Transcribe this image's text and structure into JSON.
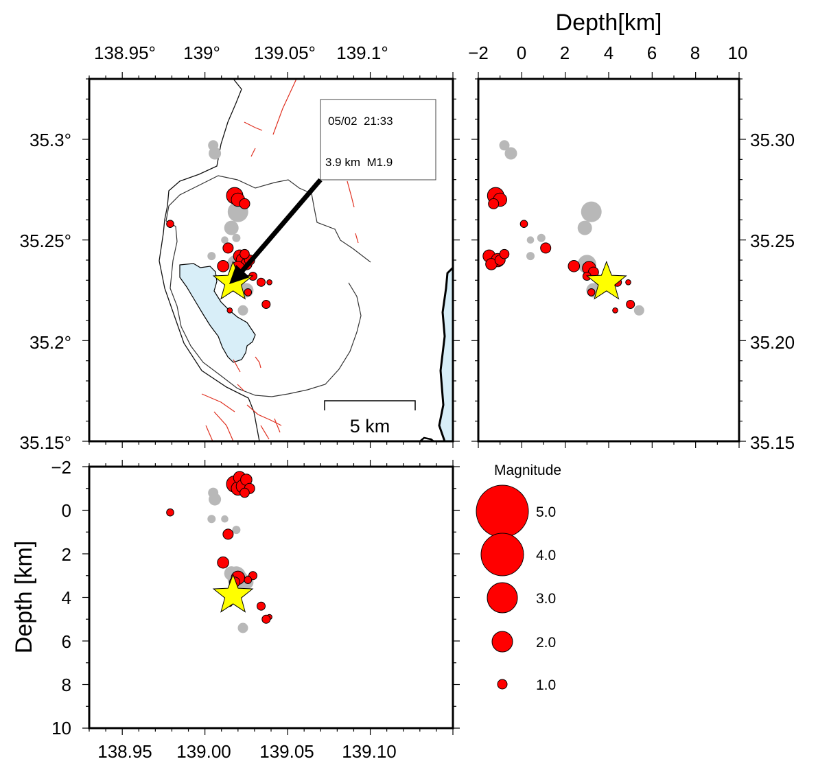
{
  "map": {
    "lon_ticks": [
      "138.95°",
      "139°",
      "139.05°",
      "139.1°"
    ],
    "lat_ticks": [
      "35.3°",
      "35.25°",
      "35.2°",
      "35.15°"
    ],
    "scale_label": "5 km",
    "callout": {
      "datetime": "05/02  21:33",
      "depth_mag": "3.9 km  M1.9"
    }
  },
  "depth_lat": {
    "title": "Depth[km]",
    "depth_ticks": [
      "−2",
      "0",
      "2",
      "4",
      "6",
      "8",
      "10"
    ],
    "lat_ticks": [
      "35.30",
      "35.25",
      "35.20",
      "35.15"
    ]
  },
  "lon_depth": {
    "title": "Depth [km]",
    "depth_ticks": [
      "−2",
      "0",
      "2",
      "4",
      "6",
      "8",
      "10"
    ],
    "lon_ticks": [
      "138.95",
      "139.00",
      "139.05",
      "139.10"
    ]
  },
  "legend": {
    "title": "Magnitude",
    "items": [
      "5.0",
      "4.0",
      "3.0",
      "2.0",
      "1.0"
    ]
  },
  "colors": {
    "recent_event": "#ff0000",
    "older_event": "#b8b8b8",
    "mainshock_star": "#ffff00",
    "fault_line": "#e03020",
    "lake_water": "#d8eef8"
  },
  "chart_data": {
    "type": "scatter",
    "lon_range": [
      138.93,
      139.15
    ],
    "lat_range": [
      35.15,
      35.33
    ],
    "depth_range": [
      -2,
      10
    ],
    "mainshock": {
      "lon": 139.017,
      "lat": 35.229,
      "depth": 3.9,
      "mag": 1.9
    },
    "recent_events": [
      {
        "lon": 139.018,
        "lat": 35.272,
        "depth": -1.2,
        "mag": 1.6
      },
      {
        "lon": 139.02,
        "lat": 35.27,
        "depth": -1.0,
        "mag": 1.3
      },
      {
        "lon": 139.024,
        "lat": 35.268,
        "depth": -1.3,
        "mag": 1.0
      },
      {
        "lon": 138.979,
        "lat": 35.258,
        "depth": 0.1,
        "mag": 0.7
      },
      {
        "lon": 139.014,
        "lat": 35.246,
        "depth": 1.1,
        "mag": 1.0
      },
      {
        "lon": 139.021,
        "lat": 35.242,
        "depth": -1.5,
        "mag": 1.2
      },
      {
        "lon": 139.023,
        "lat": 35.24,
        "depth": -1.1,
        "mag": 1.3
      },
      {
        "lon": 139.025,
        "lat": 35.238,
        "depth": -1.4,
        "mag": 1.1
      },
      {
        "lon": 139.02,
        "lat": 35.236,
        "depth": 3.1,
        "mag": 1.3
      },
      {
        "lon": 139.027,
        "lat": 35.24,
        "depth": -1.0,
        "mag": 1.0
      },
      {
        "lon": 139.024,
        "lat": 35.243,
        "depth": -0.8,
        "mag": 0.9
      },
      {
        "lon": 139.018,
        "lat": 35.234,
        "depth": 3.3,
        "mag": 1.0
      },
      {
        "lon": 139.029,
        "lat": 35.232,
        "depth": 3.0,
        "mag": 0.8
      },
      {
        "lon": 139.034,
        "lat": 35.229,
        "depth": 4.4,
        "mag": 0.8
      },
      {
        "lon": 139.039,
        "lat": 35.229,
        "depth": 4.9,
        "mag": 0.5
      },
      {
        "lon": 139.026,
        "lat": 35.224,
        "depth": 3.2,
        "mag": 0.7
      },
      {
        "lon": 139.037,
        "lat": 35.218,
        "depth": 5.0,
        "mag": 0.8
      },
      {
        "lon": 139.011,
        "lat": 35.237,
        "depth": 2.4,
        "mag": 1.1
      },
      {
        "lon": 139.015,
        "lat": 35.215,
        "depth": 4.3,
        "mag": 0.5
      }
    ],
    "older_events": [
      {
        "lon": 139.005,
        "lat": 35.297,
        "depth": -0.8,
        "mag": 1.0
      },
      {
        "lon": 139.006,
        "lat": 35.293,
        "depth": -0.5,
        "mag": 1.2
      },
      {
        "lon": 139.02,
        "lat": 35.264,
        "depth": 3.2,
        "mag": 2.0
      },
      {
        "lon": 139.016,
        "lat": 35.256,
        "depth": 2.9,
        "mag": 1.4
      },
      {
        "lon": 139.019,
        "lat": 35.251,
        "depth": 0.9,
        "mag": 0.8
      },
      {
        "lon": 139.012,
        "lat": 35.25,
        "depth": 0.4,
        "mag": 0.7
      },
      {
        "lon": 139.019,
        "lat": 35.238,
        "depth": 3.0,
        "mag": 1.8
      },
      {
        "lon": 139.025,
        "lat": 35.225,
        "depth": 3.3,
        "mag": 1.4
      },
      {
        "lon": 139.023,
        "lat": 35.215,
        "depth": 5.4,
        "mag": 1.0
      },
      {
        "lon": 139.004,
        "lat": 35.242,
        "depth": 0.4,
        "mag": 0.8
      }
    ]
  }
}
